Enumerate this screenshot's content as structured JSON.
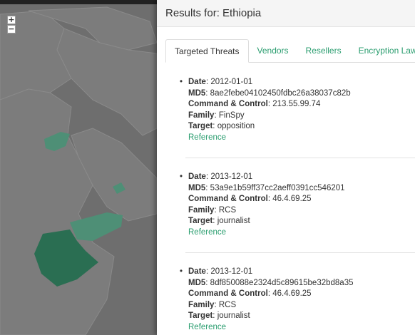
{
  "map": {
    "zoom_in_label": "+",
    "zoom_out_label": "−",
    "colors": {
      "water": "#6e6e6e",
      "land": "#7c7c7c",
      "selected": "#2a6e52",
      "highlight": "#4e8f76"
    }
  },
  "panel": {
    "title": "Results for: Ethiopia",
    "tabs": [
      "Targeted Threats",
      "Vendors",
      "Resellers",
      "Encryption Laws"
    ],
    "active_tab": "Targeted Threats"
  },
  "labels": {
    "date": "Date",
    "md5": "MD5",
    "cnc": "Command & Control",
    "family": "Family",
    "target": "Target",
    "reference": "Reference"
  },
  "results": [
    {
      "date": "2012-01-01",
      "md5": "8ae2febe04102450fdbc26a38037c82b",
      "cnc": "213.55.99.74",
      "family": "FinSpy",
      "target": "opposition"
    },
    {
      "date": "2013-12-01",
      "md5": "53a9e1b59ff37cc2aeff0391cc546201",
      "cnc": "46.4.69.25",
      "family": "RCS",
      "target": "journalist"
    },
    {
      "date": "2013-12-01",
      "md5": "8df850088e2324d5c89615be32bd8a35",
      "cnc": "46.4.69.25",
      "family": "RCS",
      "target": "journalist"
    }
  ],
  "accent_color": "#2a9d6f"
}
